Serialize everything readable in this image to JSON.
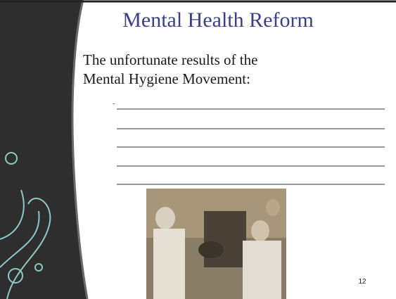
{
  "slide": {
    "title": "Mental Health Reform",
    "body": "The unfortunate results of the Mental Hygiene Movement:",
    "page_number": "12"
  }
}
